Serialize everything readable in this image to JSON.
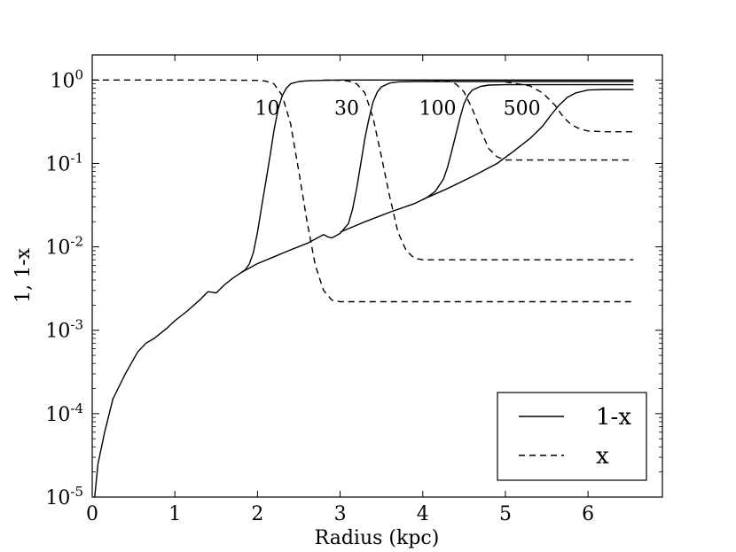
{
  "chart_data": {
    "type": "line",
    "title": "",
    "xlabel": "Radius (kpc)",
    "ylabel": "1, 1-x",
    "xlim": [
      0,
      6.9
    ],
    "ylim": [
      1e-05,
      2
    ],
    "yscale": "log",
    "x_ticks": [
      0,
      1,
      2,
      3,
      4,
      5,
      6
    ],
    "y_ticks": [
      {
        "value": 1e-05,
        "base": "10",
        "exp": "-5"
      },
      {
        "value": 0.0001,
        "base": "10",
        "exp": "-4"
      },
      {
        "value": 0.001,
        "base": "10",
        "exp": "-3"
      },
      {
        "value": 0.01,
        "base": "10",
        "exp": "-2"
      },
      {
        "value": 0.1,
        "base": "10",
        "exp": "-1"
      },
      {
        "value": 1,
        "base": "10",
        "exp": "0"
      }
    ],
    "grid": false,
    "legend": {
      "position": "lower-right",
      "entries": [
        {
          "label": "1-x",
          "style": "solid"
        },
        {
          "label": "x",
          "style": "dashed"
        }
      ]
    },
    "curve_labels": [
      {
        "text": "10",
        "x": 2.12,
        "y": 0.48
      },
      {
        "text": "30",
        "x": 3.08,
        "y": 0.48
      },
      {
        "text": "100",
        "x": 4.18,
        "y": 0.48
      },
      {
        "text": "500",
        "x": 5.2,
        "y": 0.48
      }
    ],
    "series": [
      {
        "label": "10",
        "style": "solid",
        "x": [
          0.03,
          0.07,
          0.15,
          0.25,
          0.4,
          0.55,
          0.65,
          0.75,
          0.9,
          1.0,
          1.15,
          1.3,
          1.4,
          1.5,
          1.6,
          1.7,
          1.8,
          1.85,
          1.9,
          1.95,
          2.0,
          2.05,
          2.1,
          2.15,
          2.2,
          2.25,
          2.3,
          2.35,
          2.4,
          2.5,
          2.6,
          2.8,
          3.0,
          4.0,
          5.0,
          6.0,
          6.55
        ],
        "y": [
          1e-05,
          2.5e-05,
          6e-05,
          0.00015,
          0.0003,
          0.00055,
          0.0007,
          0.0008,
          0.00105,
          0.0013,
          0.0017,
          0.0023,
          0.0029,
          0.0028,
          0.0035,
          0.0042,
          0.0049,
          0.0053,
          0.0062,
          0.0085,
          0.015,
          0.03,
          0.06,
          0.12,
          0.25,
          0.45,
          0.65,
          0.8,
          0.9,
          0.96,
          0.98,
          0.99,
          1.0,
          1.0,
          1.0,
          1.0,
          1.0
        ]
      },
      {
        "label": "30",
        "style": "solid",
        "x": [
          1.8,
          2.0,
          2.2,
          2.4,
          2.6,
          2.8,
          2.85,
          2.9,
          3.0,
          3.1,
          3.15,
          3.2,
          3.25,
          3.3,
          3.35,
          3.4,
          3.45,
          3.5,
          3.6,
          3.7,
          3.9,
          4.5,
          5.5,
          6.55
        ],
        "y": [
          0.0049,
          0.0063,
          0.0076,
          0.0092,
          0.011,
          0.014,
          0.0132,
          0.0128,
          0.0145,
          0.019,
          0.028,
          0.05,
          0.1,
          0.2,
          0.35,
          0.55,
          0.72,
          0.83,
          0.92,
          0.95,
          0.96,
          0.96,
          0.96,
          0.96
        ]
      },
      {
        "label": "100",
        "style": "solid",
        "x": [
          3.0,
          3.3,
          3.6,
          3.9,
          4.05,
          4.15,
          4.25,
          4.3,
          4.35,
          4.4,
          4.45,
          4.5,
          4.55,
          4.6,
          4.7,
          4.8,
          5.0,
          5.5,
          6.0,
          6.55
        ],
        "y": [
          0.015,
          0.02,
          0.026,
          0.033,
          0.039,
          0.046,
          0.065,
          0.09,
          0.14,
          0.22,
          0.35,
          0.52,
          0.66,
          0.76,
          0.84,
          0.87,
          0.88,
          0.88,
          0.88,
          0.88
        ]
      },
      {
        "label": "500",
        "style": "solid",
        "x": [
          4.0,
          4.3,
          4.6,
          4.9,
          5.1,
          5.3,
          5.45,
          5.55,
          5.65,
          5.75,
          5.85,
          6.0,
          6.2,
          6.55
        ],
        "y": [
          0.037,
          0.05,
          0.07,
          0.1,
          0.14,
          0.2,
          0.28,
          0.38,
          0.5,
          0.62,
          0.7,
          0.76,
          0.77,
          0.77
        ]
      },
      {
        "label": "10",
        "style": "dashed",
        "x": [
          0.0,
          1.5,
          2.0,
          2.1,
          2.2,
          2.3,
          2.4,
          2.5,
          2.6,
          2.7,
          2.8,
          2.9,
          3.0,
          3.5,
          4.5,
          5.5,
          6.55
        ],
        "y": [
          1.0,
          1.0,
          0.99,
          0.97,
          0.9,
          0.65,
          0.3,
          0.08,
          0.02,
          0.006,
          0.003,
          0.0023,
          0.0022,
          0.0022,
          0.0022,
          0.0022,
          0.0022
        ]
      },
      {
        "label": "30",
        "style": "dashed",
        "x": [
          2.8,
          3.0,
          3.1,
          3.2,
          3.3,
          3.4,
          3.5,
          3.6,
          3.7,
          3.8,
          3.9,
          4.0,
          4.5,
          5.5,
          6.55
        ],
        "y": [
          1.0,
          0.99,
          0.97,
          0.9,
          0.7,
          0.35,
          0.12,
          0.04,
          0.015,
          0.009,
          0.0073,
          0.007,
          0.007,
          0.007,
          0.007
        ]
      },
      {
        "label": "100",
        "style": "dashed",
        "x": [
          4.0,
          4.3,
          4.4,
          4.5,
          4.6,
          4.7,
          4.8,
          4.9,
          5.0,
          5.2,
          5.5,
          6.0,
          6.55
        ],
        "y": [
          1.0,
          0.98,
          0.9,
          0.72,
          0.45,
          0.25,
          0.15,
          0.12,
          0.11,
          0.11,
          0.11,
          0.11,
          0.11
        ]
      },
      {
        "label": "500",
        "style": "dashed",
        "x": [
          5.0,
          5.3,
          5.45,
          5.6,
          5.7,
          5.8,
          5.9,
          6.0,
          6.2,
          6.55
        ],
        "y": [
          0.95,
          0.85,
          0.7,
          0.5,
          0.36,
          0.29,
          0.26,
          0.245,
          0.24,
          0.24
        ]
      }
    ]
  }
}
